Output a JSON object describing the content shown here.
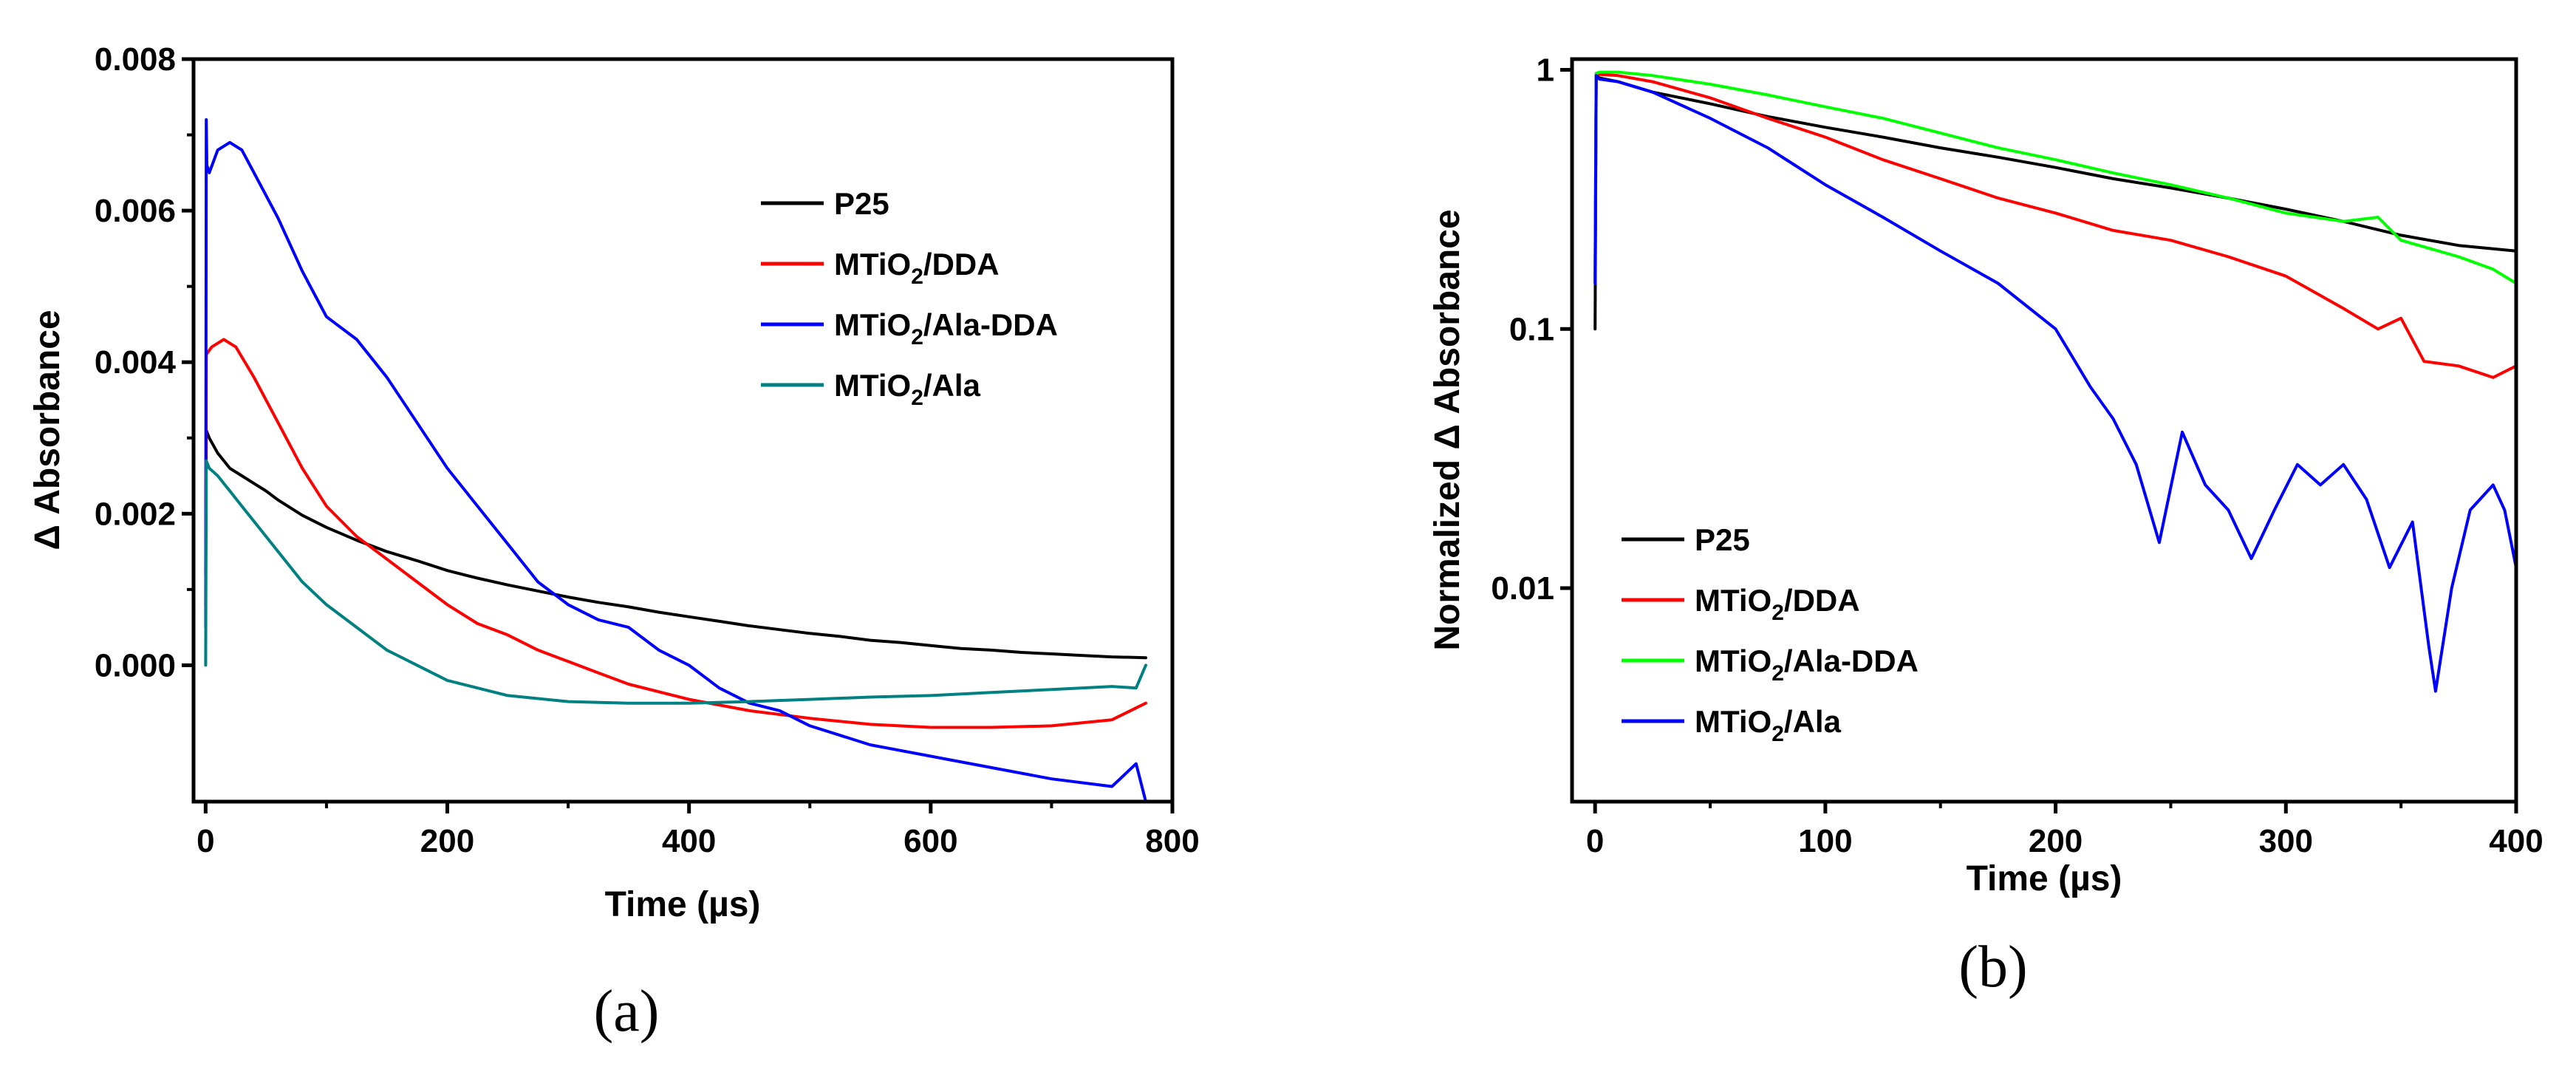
{
  "chart_data": [
    {
      "panel": "(a)",
      "type": "line",
      "xlabel": "Time (µs)",
      "ylabel": "Δ Absorbance",
      "xlim": [
        -10,
        800
      ],
      "ylim": [
        -0.0018,
        0.008
      ],
      "yscale": "linear",
      "xticks": [
        {
          "value": 0,
          "label": "0"
        },
        {
          "value": 200,
          "label": "200"
        },
        {
          "value": 400,
          "label": "400"
        },
        {
          "value": 600,
          "label": "600"
        },
        {
          "value": 800,
          "label": "800"
        }
      ],
      "yticks": [
        {
          "value": 0,
          "label": "0.000"
        },
        {
          "value": 0.002,
          "label": "0.002"
        },
        {
          "value": 0.004,
          "label": "0.004"
        },
        {
          "value": 0.006,
          "label": "0.006"
        },
        {
          "value": 0.008,
          "label": "0.008"
        }
      ],
      "legend_position": "top-right",
      "series": [
        {
          "name": "P25",
          "legend": {
            "main": "P25",
            "sub": "",
            "tail": ""
          },
          "color": "#000000",
          "x": [
            0,
            0.5,
            3,
            10,
            20,
            30,
            40,
            50,
            60,
            80,
            100,
            125,
            150,
            175,
            200,
            225,
            250,
            275,
            300,
            325,
            350,
            375,
            400,
            425,
            450,
            475,
            500,
            525,
            550,
            575,
            600,
            625,
            650,
            675,
            700,
            725,
            750,
            778
          ],
          "y": [
            0.0012,
            0.0031,
            0.003,
            0.0028,
            0.0026,
            0.0025,
            0.0024,
            0.0023,
            0.00218,
            0.00198,
            0.00182,
            0.00165,
            0.0015,
            0.00138,
            0.00125,
            0.00115,
            0.00106,
            0.00098,
            0.0009,
            0.00083,
            0.00077,
            0.0007,
            0.00064,
            0.00058,
            0.00052,
            0.00047,
            0.00042,
            0.00038,
            0.00033,
            0.0003,
            0.00026,
            0.00022,
            0.0002,
            0.00017,
            0.00015,
            0.00013,
            0.00011,
            0.0001
          ]
        },
        {
          "name": "MTiO2/DDA",
          "legend": {
            "main": "MTiO",
            "sub": "2",
            "tail": "/DDA"
          },
          "color": "#ff0000",
          "x": [
            0,
            0.5,
            5,
            15,
            25,
            40,
            60,
            80,
            100,
            125,
            150,
            175,
            200,
            225,
            250,
            275,
            300,
            325,
            350,
            375,
            400,
            450,
            500,
            550,
            600,
            650,
            700,
            750,
            778
          ],
          "y": [
            0.0008,
            0.0041,
            0.0042,
            0.0043,
            0.0042,
            0.0038,
            0.0032,
            0.0026,
            0.0021,
            0.0017,
            0.0014,
            0.0011,
            0.0008,
            0.00055,
            0.0004,
            0.0002,
            5e-05,
            -0.0001,
            -0.00025,
            -0.00035,
            -0.00045,
            -0.0006,
            -0.0007,
            -0.00078,
            -0.00082,
            -0.00082,
            -0.0008,
            -0.00072,
            -0.0005
          ]
        },
        {
          "name": "MTiO2/Ala-DDA",
          "legend": {
            "main": "MTiO",
            "sub": "2",
            "tail": "/Ala-DDA"
          },
          "color": "#0000ff",
          "x": [
            0,
            0.5,
            1,
            3,
            10,
            20,
            30,
            40,
            60,
            80,
            100,
            125,
            150,
            175,
            200,
            225,
            250,
            275,
            300,
            325,
            350,
            375,
            400,
            425,
            450,
            475,
            500,
            550,
            600,
            650,
            700,
            750,
            770,
            778
          ],
          "y": [
            0.0005,
            0.0072,
            0.0066,
            0.0065,
            0.0068,
            0.0069,
            0.0068,
            0.0065,
            0.0059,
            0.0052,
            0.0046,
            0.0043,
            0.0038,
            0.0032,
            0.0026,
            0.0021,
            0.0016,
            0.0011,
            0.0008,
            0.0006,
            0.0005,
            0.0002,
            0,
            -0.0003,
            -0.0005,
            -0.0006,
            -0.0008,
            -0.00105,
            -0.0012,
            -0.00135,
            -0.0015,
            -0.0016,
            -0.0013,
            -0.0018
          ]
        },
        {
          "name": "MTiO2/Ala",
          "legend": {
            "main": "MTiO",
            "sub": "2",
            "tail": "/Ala"
          },
          "color": "#008080",
          "x": [
            0,
            0.5,
            3,
            10,
            20,
            30,
            40,
            60,
            80,
            100,
            125,
            150,
            175,
            200,
            225,
            250,
            300,
            350,
            400,
            450,
            500,
            550,
            600,
            650,
            700,
            750,
            770,
            778
          ],
          "y": [
            0,
            0.0027,
            0.0026,
            0.0025,
            0.0023,
            0.0021,
            0.0019,
            0.0015,
            0.0011,
            0.0008,
            0.0005,
            0.0002,
            0,
            -0.0002,
            -0.0003,
            -0.0004,
            -0.00048,
            -0.0005,
            -0.0005,
            -0.00048,
            -0.00045,
            -0.00042,
            -0.0004,
            -0.00036,
            -0.00032,
            -0.00028,
            -0.0003,
            0
          ]
        }
      ]
    },
    {
      "panel": "(b)",
      "type": "line",
      "xlabel": "Time (µs)",
      "ylabel": "Normalized Δ Absorbance",
      "xlim": [
        -10,
        400
      ],
      "ylim": [
        0.0015,
        1.1
      ],
      "yscale": "log",
      "xticks": [
        {
          "value": 0,
          "label": "0"
        },
        {
          "value": 100,
          "label": "100"
        },
        {
          "value": 200,
          "label": "200"
        },
        {
          "value": 300,
          "label": "300"
        },
        {
          "value": 400,
          "label": "400"
        }
      ],
      "yticks": [
        {
          "value": 0.01,
          "label": "0.01"
        },
        {
          "value": 0.1,
          "label": "0.1"
        },
        {
          "value": 1,
          "label": "1"
        }
      ],
      "legend_position": "lower-left",
      "series": [
        {
          "name": "P25",
          "legend": {
            "main": "P25",
            "sub": "",
            "tail": ""
          },
          "color": "#000000",
          "x": [
            0,
            0.5,
            2,
            10,
            25,
            50,
            75,
            100,
            125,
            150,
            175,
            200,
            225,
            250,
            275,
            300,
            325,
            350,
            375,
            400
          ],
          "y": [
            0.1,
            0.95,
            0.93,
            0.9,
            0.82,
            0.74,
            0.66,
            0.6,
            0.55,
            0.5,
            0.46,
            0.42,
            0.38,
            0.35,
            0.32,
            0.29,
            0.26,
            0.23,
            0.21,
            0.2
          ]
        },
        {
          "name": "MTiO2/DDA",
          "legend": {
            "main": "MTiO",
            "sub": "2",
            "tail": "/DDA"
          },
          "color": "#ff0000",
          "x": [
            0,
            0.5,
            2,
            10,
            25,
            50,
            75,
            100,
            125,
            150,
            175,
            200,
            225,
            250,
            275,
            300,
            325,
            340,
            350,
            360,
            375,
            390,
            400
          ],
          "y": [
            0.15,
            0.97,
            0.96,
            0.95,
            0.9,
            0.78,
            0.65,
            0.55,
            0.45,
            0.38,
            0.32,
            0.28,
            0.24,
            0.22,
            0.19,
            0.16,
            0.12,
            0.1,
            0.11,
            0.075,
            0.072,
            0.065,
            0.072
          ]
        },
        {
          "name": "MTiO2/Ala-DDA",
          "legend": {
            "main": "MTiO",
            "sub": "2",
            "tail": "/Ala-DDA"
          },
          "color": "#00ff00",
          "x": [
            0,
            0.5,
            2,
            10,
            25,
            50,
            75,
            100,
            125,
            150,
            175,
            200,
            225,
            250,
            275,
            300,
            325,
            340,
            350,
            375,
            390,
            400
          ],
          "y": [
            0.15,
            0.97,
            0.98,
            0.98,
            0.95,
            0.88,
            0.8,
            0.72,
            0.65,
            0.57,
            0.5,
            0.45,
            0.4,
            0.36,
            0.32,
            0.28,
            0.26,
            0.27,
            0.22,
            0.19,
            0.17,
            0.15
          ]
        },
        {
          "name": "MTiO2/Ala",
          "legend": {
            "main": "MTiO",
            "sub": "2",
            "tail": "/Ala"
          },
          "color": "#0000ff",
          "x": [
            0,
            0.5,
            2,
            10,
            25,
            50,
            75,
            100,
            125,
            150,
            175,
            200,
            215,
            225,
            235,
            245,
            255,
            265,
            275,
            285,
            295,
            305,
            315,
            325,
            335,
            345,
            355,
            362,
            365,
            372,
            380,
            390,
            395,
            400
          ],
          "y": [
            0.15,
            0.95,
            0.92,
            0.9,
            0.82,
            0.65,
            0.5,
            0.36,
            0.27,
            0.2,
            0.15,
            0.1,
            0.06,
            0.045,
            0.03,
            0.015,
            0.04,
            0.025,
            0.02,
            0.013,
            0.02,
            0.03,
            0.025,
            0.03,
            0.022,
            0.012,
            0.018,
            0.006,
            0.004,
            0.01,
            0.02,
            0.025,
            0.02,
            0.012
          ]
        }
      ]
    }
  ],
  "panel_labels": {
    "a": "(a)",
    "b": "(b)"
  }
}
